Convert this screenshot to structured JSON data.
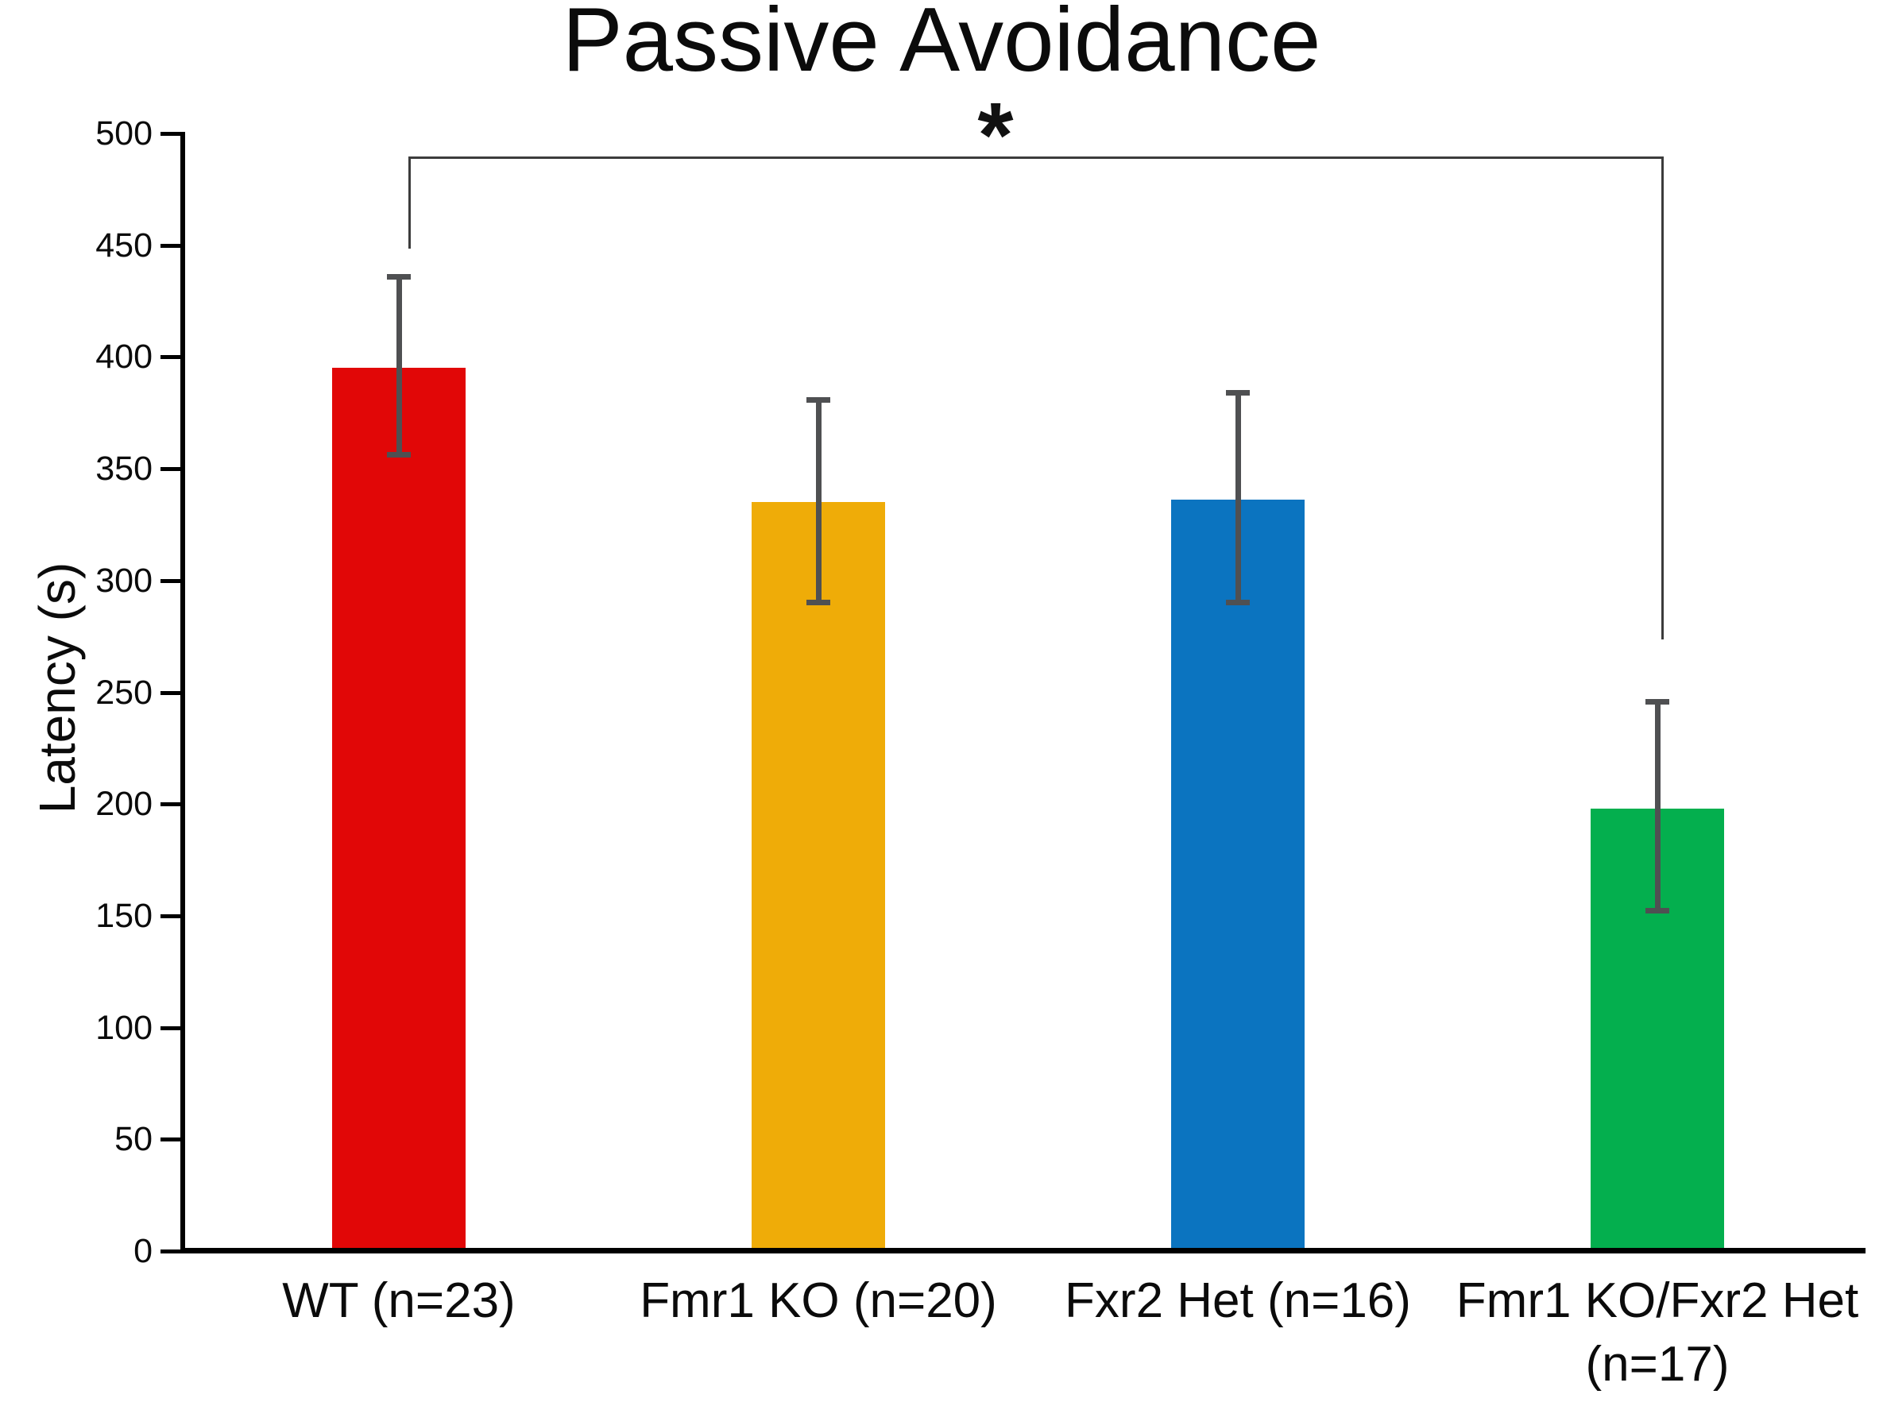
{
  "chart_data": {
    "type": "bar",
    "title": "Passive Avoidance",
    "ylabel": "Latency (s)",
    "xlabel": "",
    "categories": [
      "WT (n=23)",
      "Fmr1 KO (n=20)",
      "Fxr2 Het (n=16)",
      "Fmr1 KO/Fxr2 Het\n(n=17)"
    ],
    "values": [
      395,
      335,
      336,
      198
    ],
    "error_bars": {
      "upper": [
        436,
        381,
        384,
        246
      ],
      "lower": [
        356,
        290,
        290,
        152
      ]
    },
    "ylim": [
      0,
      500
    ],
    "yticks": [
      0,
      50,
      100,
      150,
      200,
      250,
      300,
      350,
      400,
      450,
      500
    ],
    "bar_colors": [
      "#e10707",
      "#efac08",
      "#0b74c0",
      "#04af4e"
    ],
    "error_bar_color": "#4f5052",
    "axis_color": "#000000",
    "significance": {
      "symbol": "*",
      "between": [
        "WT (n=23)",
        "Fmr1 KO/Fxr2 Het (n=17)"
      ],
      "bracket_color": "#3c3c3c"
    },
    "grid": false,
    "legend": false
  }
}
